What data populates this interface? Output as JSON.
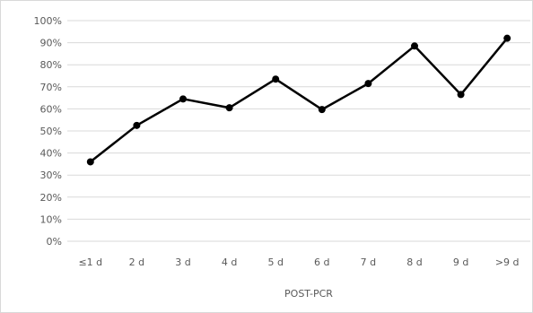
{
  "chart_data": {
    "type": "line",
    "title": "",
    "xlabel": "POST-PCR",
    "ylabel": "",
    "categories": [
      "≤1 d",
      "2 d",
      "3 d",
      "4 d",
      "5 d",
      "6 d",
      "7 d",
      "8 d",
      "9 d",
      ">9 d"
    ],
    "series": [
      {
        "values": [
          0.36,
          0.525,
          0.645,
          0.605,
          0.735,
          0.597,
          0.715,
          0.885,
          0.665,
          0.92
        ],
        "color": "#000000",
        "marker": "circle"
      }
    ],
    "ylim": [
      0,
      1
    ],
    "y_ticks": [
      "0%",
      "10%",
      "20%",
      "30%",
      "40%",
      "50%",
      "60%",
      "70%",
      "80%",
      "90%",
      "100%"
    ],
    "grid": "horizontal",
    "legend": "none",
    "colors": {
      "gridline": "#d9d9d9",
      "text": "#595959",
      "border": "#d9d9d9"
    }
  }
}
